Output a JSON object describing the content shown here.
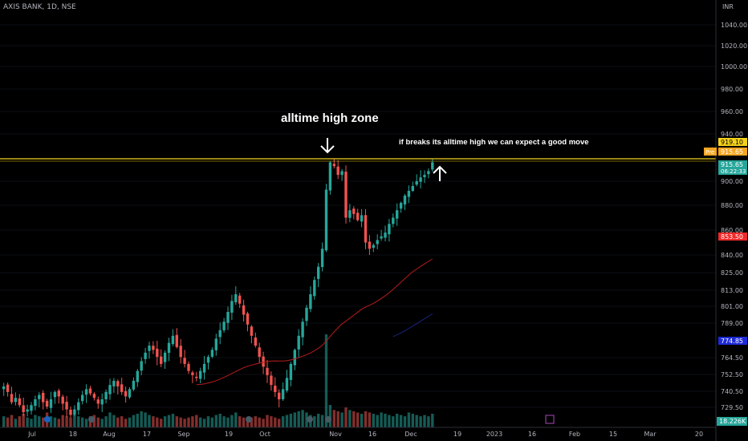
{
  "header": {
    "symbol": "AXIS BANK, 1D, NSE",
    "currency": "INR"
  },
  "annotations": {
    "zone": "alltime high zone",
    "note": "if breaks its alltime high we can expect a good move"
  },
  "colors": {
    "bg": "#000000",
    "up": "#26a69a",
    "down": "#ef5350",
    "resistance": "#f5d21b",
    "ma_short": "#b71c1c",
    "ma_long": "#1a237e",
    "axis_text": "#b2b5be"
  },
  "price_axis": {
    "labels": [
      "1040.00",
      "1020.00",
      "1000.00",
      "980.00",
      "960.00",
      "940.00",
      "900.00",
      "880.00",
      "860.00",
      "840.00",
      "825.00",
      "813.00",
      "801.00",
      "789.00",
      "764.50",
      "752.50",
      "740.50",
      "729.50"
    ],
    "badges": [
      {
        "label": "919.10",
        "price": 919.1,
        "bg": "#f5d21b",
        "fg": "#000000"
      },
      {
        "label": "915.65",
        "price": 915.65,
        "bg": "#f5a623",
        "fg": "#ffffff",
        "prefix": "Pre"
      },
      {
        "label": "915.65",
        "price": 915.65,
        "bg": "#26a69a",
        "fg": "#ffffff",
        "sub": "06:22:33"
      },
      {
        "label": "853.50",
        "price": 853.5,
        "bg": "#ef2a2a",
        "fg": "#ffffff"
      },
      {
        "label": "774.85",
        "price": 774.85,
        "bg": "#1e2bd6",
        "fg": "#ffffff"
      }
    ],
    "volume_badge": "18.226K"
  },
  "chart_data": {
    "type": "candlestick",
    "title": "AXIS BANK, 1D, NSE",
    "currency": "INR",
    "x_labels": [
      "Jul",
      "18",
      "Aug",
      "17",
      "Sep",
      "19",
      "Oct",
      "Nov",
      "16",
      "Dec",
      "19",
      "2023",
      "16",
      "Feb",
      "15",
      "Mar",
      "20"
    ],
    "resistance_level": 919.1,
    "last_price": 915.65,
    "ma_short_last": 853.5,
    "ma_long_last": 774.85,
    "candles_close": [
      744,
      740,
      733,
      736,
      731,
      726,
      728,
      731,
      735,
      738,
      733,
      730,
      735,
      740,
      737,
      732,
      728,
      724,
      728,
      733,
      738,
      742,
      739,
      736,
      732,
      735,
      740,
      745,
      748,
      744,
      740,
      737,
      742,
      748,
      755,
      762,
      768,
      773,
      770,
      765,
      760,
      768,
      775,
      780,
      772,
      765,
      760,
      755,
      752,
      750,
      755,
      760,
      765,
      770,
      778,
      784,
      790,
      797,
      805,
      810,
      803,
      795,
      788,
      780,
      773,
      765,
      758,
      752,
      745,
      740,
      735,
      742,
      750,
      760,
      770,
      780,
      790,
      800,
      810,
      820,
      830,
      845,
      893,
      915,
      912,
      905,
      908,
      870,
      876,
      873,
      868,
      872,
      850,
      845,
      848,
      852,
      855,
      858,
      865,
      870,
      876,
      882,
      888,
      892,
      896,
      900,
      903,
      905,
      908,
      915
    ],
    "volume": [
      5,
      4,
      6,
      3,
      5,
      7,
      4,
      3,
      6,
      5,
      4,
      8,
      5,
      4,
      3,
      6,
      5,
      4,
      7,
      5,
      4,
      3,
      5,
      6,
      4,
      3,
      5,
      8,
      6,
      4,
      5,
      3,
      4,
      6,
      7,
      9,
      8,
      6,
      5,
      4,
      3,
      5,
      6,
      7,
      5,
      4,
      3,
      4,
      5,
      6,
      4,
      3,
      5,
      4,
      6,
      7,
      5,
      4,
      6,
      8,
      5,
      4,
      3,
      4,
      5,
      4,
      3,
      6,
      5,
      4,
      3,
      5,
      6,
      7,
      8,
      9,
      10,
      8,
      6,
      5,
      7,
      6,
      70,
      14,
      10,
      9,
      8,
      12,
      10,
      9,
      8,
      7,
      9,
      8,
      7,
      6,
      8,
      7,
      6,
      5,
      7,
      6,
      5,
      8,
      7,
      6,
      5,
      6,
      5,
      7
    ]
  }
}
